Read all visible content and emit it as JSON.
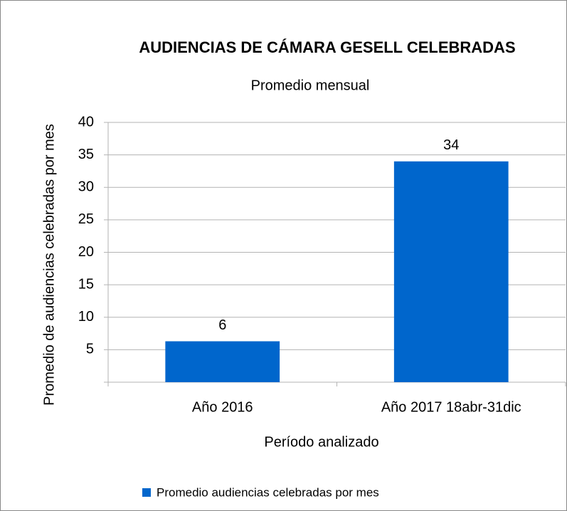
{
  "chart_data": {
    "type": "bar",
    "title": "AUDIENCIAS DE CÁMARA GESELL CELEBRADAS",
    "subtitle": "Promedio mensual",
    "x_label": "Período analizado",
    "y_label": "Promedio de audiencias celebradas por mes",
    "categories": [
      "Año 2016",
      "Año 2017 18abr-31dic"
    ],
    "series": [
      {
        "name": "Promedio audiencias celebradas por mes",
        "color": "#0066cc",
        "values": [
          6.3,
          34
        ],
        "value_labels": [
          "6",
          "34"
        ]
      }
    ],
    "ylim": [
      0,
      40
    ],
    "yticks": [
      5,
      10,
      15,
      20,
      25,
      30,
      35,
      40
    ],
    "grid": true,
    "legend": "bottom"
  }
}
